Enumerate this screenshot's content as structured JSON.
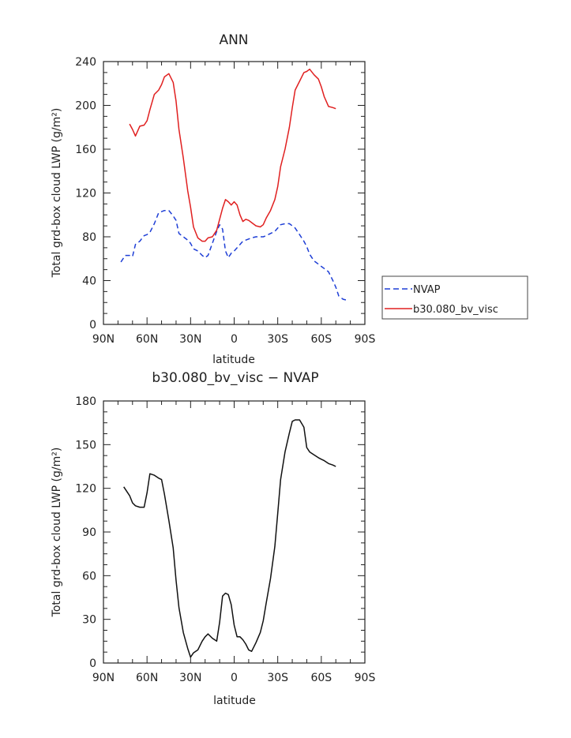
{
  "chart_data": [
    {
      "type": "line",
      "title": "ANN",
      "xlabel": "latitude",
      "ylabel": "Total grd-box cloud LWP (g/m²)",
      "xlim": [
        90,
        -90
      ],
      "ylim": [
        0,
        240
      ],
      "x_ticks": [
        90,
        60,
        30,
        0,
        -30,
        -60,
        -90
      ],
      "x_tick_labels": [
        "90N",
        "60N",
        "30N",
        "0",
        "30S",
        "60S",
        "90S"
      ],
      "y_ticks": [
        0,
        40,
        80,
        120,
        160,
        200,
        240
      ],
      "y_tick_labels": [
        "0",
        "40",
        "80",
        "120",
        "160",
        "200",
        "240"
      ],
      "legend": "right",
      "series": [
        {
          "name": "NVAP",
          "color": "#1f3fd6",
          "style": "dashed",
          "x": [
            78,
            75,
            72,
            70,
            68,
            65,
            62,
            60,
            58,
            55,
            52,
            50,
            48,
            45,
            42,
            40,
            38,
            35,
            32,
            30,
            28,
            25,
            22,
            20,
            18,
            15,
            12,
            10,
            8,
            6,
            4,
            2,
            0,
            -2,
            -4,
            -6,
            -8,
            -10,
            -12,
            -15,
            -18,
            -20,
            -22,
            -25,
            -28,
            -30,
            -32,
            -35,
            -38,
            -40,
            -42,
            -45,
            -48,
            -50,
            -52,
            -55,
            -58,
            -60,
            -62,
            -65,
            -68,
            -70,
            -72,
            -75,
            -78
          ],
          "values": [
            57,
            63,
            63,
            62,
            73,
            76,
            81,
            82,
            84,
            92,
            102,
            103,
            104,
            104,
            99,
            95,
            83,
            80,
            77,
            74,
            69,
            67,
            63,
            61,
            63,
            74,
            85,
            91,
            87,
            67,
            61,
            65,
            67,
            70,
            73,
            76,
            77,
            78,
            79,
            80,
            80,
            80,
            81,
            83,
            85,
            88,
            91,
            92,
            92,
            90,
            88,
            82,
            76,
            71,
            64,
            58,
            55,
            53,
            51,
            48,
            40,
            34,
            26,
            23,
            22
          ]
        },
        {
          "name": "b30.080_bv_visc",
          "color": "#e02020",
          "style": "solid",
          "x": [
            72,
            70,
            68,
            65,
            62,
            60,
            58,
            55,
            52,
            50,
            48,
            45,
            42,
            40,
            38,
            35,
            32,
            30,
            28,
            25,
            22,
            20,
            18,
            15,
            12,
            10,
            8,
            6,
            4,
            2,
            0,
            -2,
            -4,
            -6,
            -8,
            -10,
            -12,
            -15,
            -18,
            -20,
            -22,
            -25,
            -28,
            -30,
            -32,
            -35,
            -38,
            -40,
            -42,
            -45,
            -48,
            -50,
            -52,
            -55,
            -58,
            -60,
            -62,
            -65,
            -68,
            -70
          ],
          "values": [
            183,
            178,
            172,
            181,
            182,
            186,
            196,
            210,
            214,
            219,
            226,
            229,
            221,
            204,
            178,
            152,
            122,
            107,
            89,
            79,
            76,
            76,
            79,
            80,
            86,
            96,
            106,
            114,
            112,
            109,
            112,
            109,
            100,
            94,
            96,
            95,
            93,
            90,
            89,
            91,
            97,
            104,
            114,
            126,
            144,
            160,
            180,
            198,
            214,
            222,
            230,
            231,
            233,
            228,
            224,
            217,
            208,
            199,
            198,
            197
          ]
        }
      ]
    },
    {
      "type": "line",
      "title": "b30.080_bv_visc − NVAP",
      "xlabel": "latitude",
      "ylabel": "Total grd-box cloud LWP (g/m²)",
      "xlim": [
        90,
        -90
      ],
      "ylim": [
        0,
        180
      ],
      "x_ticks": [
        90,
        60,
        30,
        0,
        -30,
        -60,
        -90
      ],
      "x_tick_labels": [
        "90N",
        "60N",
        "30N",
        "0",
        "30S",
        "60S",
        "90S"
      ],
      "y_ticks": [
        0,
        30,
        60,
        90,
        120,
        150,
        180
      ],
      "y_tick_labels": [
        "0",
        "30",
        "60",
        "90",
        "120",
        "150",
        "180"
      ],
      "series": [
        {
          "color": "#111111",
          "style": "solid",
          "x": [
            76,
            72,
            70,
            68,
            65,
            62,
            60,
            58,
            55,
            52,
            50,
            48,
            45,
            42,
            40,
            38,
            35,
            32,
            30,
            28,
            25,
            22,
            20,
            18,
            15,
            12,
            10,
            8,
            6,
            4,
            2,
            0,
            -2,
            -4,
            -6,
            -8,
            -10,
            -12,
            -15,
            -18,
            -20,
            -22,
            -25,
            -28,
            -30,
            -32,
            -35,
            -38,
            -40,
            -42,
            -45,
            -48,
            -50,
            -52,
            -55,
            -58,
            -60,
            -62,
            -65,
            -68,
            -70
          ],
          "values": [
            121,
            115,
            110,
            108,
            107,
            107,
            117,
            130,
            129,
            127,
            126,
            116,
            98,
            79,
            57,
            38,
            21,
            10,
            4,
            7,
            9,
            15,
            18,
            20,
            17,
            15,
            28,
            46,
            48,
            47,
            40,
            26,
            18,
            18,
            16,
            13,
            9,
            8,
            14,
            21,
            29,
            41,
            58,
            80,
            103,
            126,
            145,
            158,
            166,
            167,
            167,
            162,
            148,
            145,
            143,
            141,
            140,
            139,
            137,
            136,
            135
          ]
        }
      ]
    }
  ]
}
